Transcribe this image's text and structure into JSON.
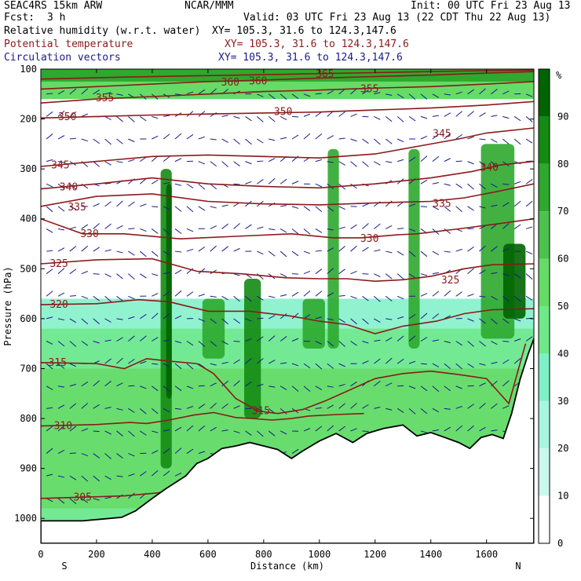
{
  "header": {
    "model": "SEAC4RS 15km ARW",
    "org": "NCAR/MMM",
    "init": "Init: 00 UTC Fri 23 Aug 13",
    "fcst_label": "Fcst:",
    "fcst_value": "3 h",
    "valid": "Valid: 03 UTC Fri 23 Aug 13 (22 CDT Thu 22 Aug 13)",
    "lines": [
      {
        "name": "Relative humidity (w.r.t. water)",
        "xy": "XY= 105.3, 31.6 to 124.3,147.6",
        "color": "#000000"
      },
      {
        "name": "Potential temperature",
        "xy": "XY= 105.3, 31.6 to 124.3,147.6",
        "color": "#8b1a1a"
      },
      {
        "name": "Circulation vectors",
        "xy": "XY= 105.3, 31.6 to 124.3,147.6",
        "color": "#1a1a8b"
      }
    ]
  },
  "chart_data": {
    "type": "heatmap",
    "xlabel": "Distance (km)",
    "ylabel": "Pressure (hPa)",
    "xlim": [
      0,
      1770
    ],
    "ylim": [
      1050,
      100
    ],
    "x_ticks": [
      0,
      200,
      400,
      600,
      800,
      1000,
      1200,
      1400,
      1600
    ],
    "y_ticks": [
      100,
      200,
      300,
      400,
      500,
      600,
      700,
      800,
      900,
      1000
    ],
    "endpoint_labels": {
      "left": "S",
      "right": "N"
    },
    "colorbar": {
      "unit": "%",
      "ticks": [
        90,
        80,
        70,
        60,
        50,
        40,
        30,
        20,
        10,
        0
      ],
      "colors": [
        "#006400",
        "#138b13",
        "#2ea82e",
        "#4cc24c",
        "#66db66",
        "#6ee888",
        "#7ef0c8",
        "#a8f5e0",
        "#c9f8ec",
        "#ffffff"
      ]
    },
    "terrain": [
      [
        0,
        1005
      ],
      [
        150,
        1005
      ],
      [
        290,
        998
      ],
      [
        340,
        985
      ],
      [
        400,
        960
      ],
      [
        450,
        940
      ],
      [
        520,
        915
      ],
      [
        560,
        890
      ],
      [
        600,
        880
      ],
      [
        650,
        860
      ],
      [
        700,
        855
      ],
      [
        750,
        848
      ],
      [
        800,
        855
      ],
      [
        850,
        862
      ],
      [
        900,
        880
      ],
      [
        940,
        865
      ],
      [
        1000,
        845
      ],
      [
        1060,
        830
      ],
      [
        1120,
        848
      ],
      [
        1170,
        830
      ],
      [
        1230,
        820
      ],
      [
        1300,
        813
      ],
      [
        1350,
        835
      ],
      [
        1400,
        828
      ],
      [
        1450,
        838
      ],
      [
        1500,
        848
      ],
      [
        1540,
        860
      ],
      [
        1580,
        838
      ],
      [
        1620,
        832
      ],
      [
        1660,
        840
      ],
      [
        1690,
        790
      ],
      [
        1720,
        722
      ],
      [
        1750,
        670
      ],
      [
        1770,
        640
      ]
    ],
    "theta_contours": [
      {
        "value": 305,
        "points": [
          [
            0,
            960
          ],
          [
            300,
            955
          ],
          [
            600,
            940
          ]
        ],
        "label_at": [
          150,
          958
        ]
      },
      {
        "value": 310,
        "points": [
          [
            0,
            815
          ],
          [
            200,
            812
          ],
          [
            320,
            808
          ],
          [
            380,
            810
          ],
          [
            460,
            803
          ],
          [
            550,
            793
          ],
          [
            620,
            788
          ],
          [
            700,
            798
          ],
          [
            760,
            800
          ],
          [
            830,
            803
          ],
          [
            900,
            800
          ],
          [
            960,
            795
          ],
          [
            1060,
            792
          ],
          [
            1160,
            790
          ]
        ],
        "label_at": [
          80,
          815
        ]
      },
      {
        "value": 315,
        "points": [
          [
            0,
            688
          ],
          [
            200,
            690
          ],
          [
            300,
            700
          ],
          [
            380,
            680
          ],
          [
            460,
            685
          ],
          [
            560,
            690
          ],
          [
            620,
            710
          ],
          [
            700,
            760
          ],
          [
            780,
            785
          ],
          [
            850,
            790
          ],
          [
            940,
            782
          ],
          [
            1020,
            765
          ],
          [
            1100,
            745
          ],
          [
            1200,
            720
          ],
          [
            1300,
            710
          ],
          [
            1400,
            705
          ],
          [
            1500,
            712
          ],
          [
            1600,
            720
          ],
          [
            1680,
            770
          ],
          [
            1740,
            650
          ]
        ],
        "label_at": [
          60,
          688
        ],
        "label2_at": [
          790,
          785
        ]
      },
      {
        "value": 320,
        "points": [
          [
            0,
            572
          ],
          [
            200,
            570
          ],
          [
            350,
            562
          ],
          [
            460,
            566
          ],
          [
            600,
            585
          ],
          [
            750,
            585
          ],
          [
            900,
            595
          ],
          [
            1000,
            605
          ],
          [
            1100,
            612
          ],
          [
            1200,
            630
          ],
          [
            1300,
            615
          ],
          [
            1420,
            605
          ],
          [
            1520,
            590
          ],
          [
            1620,
            582
          ],
          [
            1770,
            580
          ]
        ],
        "label_at": [
          65,
          572
        ]
      },
      {
        "value": 325,
        "points": [
          [
            0,
            490
          ],
          [
            200,
            482
          ],
          [
            400,
            480
          ],
          [
            560,
            505
          ],
          [
            720,
            510
          ],
          [
            880,
            518
          ],
          [
            1000,
            520
          ],
          [
            1100,
            520
          ],
          [
            1200,
            525
          ],
          [
            1300,
            522
          ],
          [
            1400,
            515
          ],
          [
            1520,
            500
          ],
          [
            1620,
            492
          ],
          [
            1770,
            490
          ]
        ],
        "label_at": [
          65,
          490
        ],
        "label2_at": [
          1470,
          523
        ]
      },
      {
        "value": 330,
        "points": [
          [
            0,
            400
          ],
          [
            150,
            430
          ],
          [
            300,
            430
          ],
          [
            500,
            440
          ],
          [
            700,
            435
          ],
          [
            900,
            430
          ],
          [
            1050,
            438
          ],
          [
            1150,
            438
          ],
          [
            1280,
            432
          ],
          [
            1350,
            430
          ],
          [
            1500,
            420
          ],
          [
            1640,
            410
          ],
          [
            1770,
            400
          ]
        ],
        "label_at": [
          175,
          430
        ],
        "label2_at": [
          1180,
          440
        ]
      },
      {
        "value": 335,
        "points": [
          [
            0,
            375
          ],
          [
            200,
            355
          ],
          [
            400,
            350
          ],
          [
            600,
            365
          ],
          [
            800,
            370
          ],
          [
            1000,
            372
          ],
          [
            1200,
            368
          ],
          [
            1400,
            365
          ],
          [
            1520,
            358
          ],
          [
            1640,
            345
          ],
          [
            1770,
            330
          ]
        ],
        "label_at": [
          130,
          377
        ],
        "label2_at": [
          1440,
          370
        ]
      },
      {
        "value": 340,
        "points": [
          [
            0,
            340
          ],
          [
            200,
            330
          ],
          [
            400,
            318
          ],
          [
            600,
            330
          ],
          [
            800,
            335
          ],
          [
            1000,
            338
          ],
          [
            1200,
            330
          ],
          [
            1400,
            318
          ],
          [
            1550,
            305
          ],
          [
            1650,
            292
          ],
          [
            1770,
            285
          ]
        ],
        "label_at": [
          100,
          337
        ],
        "label2_at": [
          1610,
          297
        ]
      },
      {
        "value": 345,
        "points": [
          [
            0,
            295
          ],
          [
            200,
            285
          ],
          [
            400,
            275
          ],
          [
            600,
            272
          ],
          [
            800,
            275
          ],
          [
            1000,
            278
          ],
          [
            1200,
            270
          ],
          [
            1400,
            250
          ],
          [
            1500,
            240
          ],
          [
            1600,
            228
          ],
          [
            1770,
            218
          ]
        ],
        "label_at": [
          70,
          293
        ],
        "label2_at": [
          1440,
          230
        ]
      },
      {
        "value": 350,
        "points": [
          [
            0,
            198
          ],
          [
            200,
            195
          ],
          [
            400,
            192
          ],
          [
            600,
            190
          ],
          [
            800,
            188
          ],
          [
            1000,
            186
          ],
          [
            1200,
            182
          ],
          [
            1400,
            178
          ],
          [
            1600,
            172
          ],
          [
            1770,
            165
          ]
        ],
        "label_at": [
          95,
          196
        ],
        "label2_at": [
          870,
          186
        ]
      },
      {
        "value": 355,
        "points": [
          [
            0,
            168
          ],
          [
            200,
            160
          ],
          [
            400,
            155
          ],
          [
            600,
            150
          ],
          [
            800,
            145
          ],
          [
            1000,
            142
          ],
          [
            1200,
            138
          ],
          [
            1400,
            135
          ],
          [
            1600,
            130
          ],
          [
            1770,
            125
          ]
        ],
        "label_at": [
          230,
          158
        ],
        "label2_at": [
          1180,
          140
        ]
      },
      {
        "value": 360,
        "points": [
          [
            0,
            140
          ],
          [
            200,
            135
          ],
          [
            400,
            130
          ],
          [
            600,
            125
          ],
          [
            800,
            122
          ],
          [
            1000,
            118
          ],
          [
            1200,
            115
          ],
          [
            1400,
            112
          ],
          [
            1600,
            108
          ],
          [
            1770,
            105
          ]
        ],
        "label_at": [
          680,
          127
        ],
        "label2_at": [
          780,
          124
        ]
      },
      {
        "value": 365,
        "points": [
          [
            0,
            120
          ],
          [
            300,
            116
          ],
          [
            600,
            113
          ],
          [
            900,
            110
          ],
          [
            1200,
            107
          ],
          [
            1500,
            104
          ],
          [
            1770,
            102
          ]
        ],
        "label_at": [
          1020,
          110
        ]
      }
    ],
    "tick_labels_inside": {
      "350_right": "350"
    }
  }
}
